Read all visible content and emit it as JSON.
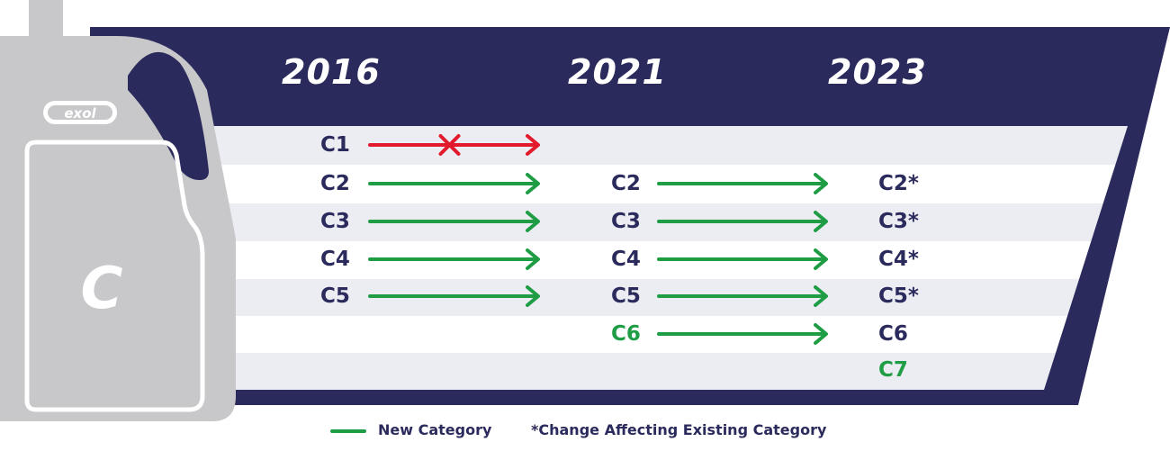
{
  "colors": {
    "navy": "#2b2a5c",
    "green": "#1f9d45",
    "red": "#e11a2c",
    "stripe": "#ececf3",
    "bottle": "#c8c8cb",
    "bottle_outline": "#ffffff"
  },
  "icons": {
    "bottle": "oil-bottle-icon",
    "logo": "exol-logo",
    "cross": "cross-icon",
    "arrow": "arrow-right-icon"
  },
  "bottle": {
    "logo_text": "exol",
    "letter": "C"
  },
  "years": [
    "2016",
    "2021",
    "2023"
  ],
  "rows": [
    {
      "c2016": "C1",
      "a1": "red-crossed",
      "c2021": "",
      "a2": "none",
      "c2023": "",
      "c2021_new": false,
      "c2023_new": false
    },
    {
      "c2016": "C2",
      "a1": "green",
      "c2021": "C2",
      "a2": "green",
      "c2023": "C2*",
      "c2021_new": false,
      "c2023_new": false
    },
    {
      "c2016": "C3",
      "a1": "green",
      "c2021": "C3",
      "a2": "green",
      "c2023": "C3*",
      "c2021_new": false,
      "c2023_new": false
    },
    {
      "c2016": "C4",
      "a1": "green",
      "c2021": "C4",
      "a2": "green",
      "c2023": "C4*",
      "c2021_new": false,
      "c2023_new": false
    },
    {
      "c2016": "C5",
      "a1": "green",
      "c2021": "C5",
      "a2": "green",
      "c2023": "C5*",
      "c2021_new": false,
      "c2023_new": false
    },
    {
      "c2016": "",
      "a1": "none",
      "c2021": "C6",
      "a2": "green",
      "c2023": "C6",
      "c2021_new": true,
      "c2023_new": false
    },
    {
      "c2016": "",
      "a1": "none",
      "c2021": "",
      "a2": "none",
      "c2023": "C7",
      "c2021_new": false,
      "c2023_new": true
    }
  ],
  "legend": {
    "new_category": "New Category",
    "change_note": "*Change Affecting Existing Category"
  }
}
